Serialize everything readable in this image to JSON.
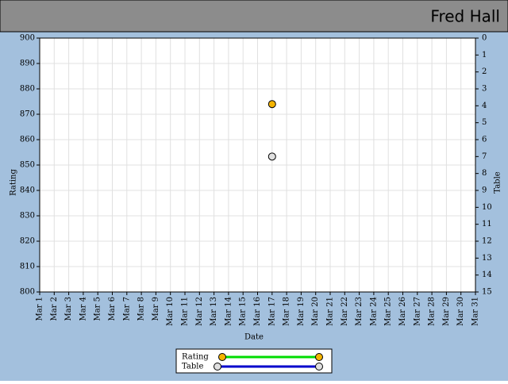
{
  "header": {
    "title": "Fred Hall"
  },
  "chart_data": {
    "type": "line",
    "x_label": "Date",
    "y_label": "Rating",
    "y2_label": "Table",
    "categories": [
      "Mar 1",
      "Mar 2",
      "Mar 3",
      "Mar 4",
      "Mar 5",
      "Mar 6",
      "Mar 7",
      "Mar 8",
      "Mar 9",
      "Mar 10",
      "Mar 11",
      "Mar 12",
      "Mar 13",
      "Mar 14",
      "Mar 15",
      "Mar 16",
      "Mar 17",
      "Mar 18",
      "Mar 19",
      "Mar 20",
      "Mar 21",
      "Mar 22",
      "Mar 23",
      "Mar 24",
      "Mar 25",
      "Mar 26",
      "Mar 27",
      "Mar 28",
      "Mar 29",
      "Mar 30",
      "Mar 31"
    ],
    "series": [
      {
        "name": "Rating",
        "color": "#00dd00",
        "marker_color": "#f5b400",
        "values": [
          null,
          null,
          null,
          null,
          null,
          null,
          null,
          null,
          null,
          null,
          null,
          null,
          null,
          null,
          null,
          null,
          874,
          null,
          null,
          null,
          null,
          null,
          null,
          null,
          null,
          null,
          null,
          null,
          null,
          null,
          null
        ]
      },
      {
        "name": "Table",
        "axis": "y2",
        "color": "#0000cc",
        "marker_color": "#e0e0e0",
        "values": [
          null,
          null,
          null,
          null,
          null,
          null,
          null,
          null,
          null,
          null,
          null,
          null,
          null,
          null,
          null,
          null,
          7,
          null,
          null,
          null,
          null,
          null,
          null,
          null,
          null,
          null,
          null,
          null,
          null,
          null,
          null
        ]
      }
    ],
    "ylim": [
      800,
      900
    ],
    "yticks": [
      800,
      810,
      820,
      830,
      840,
      850,
      860,
      870,
      880,
      890,
      900
    ],
    "y2lim": [
      15,
      0
    ],
    "y2ticks": [
      0,
      1,
      2,
      3,
      4,
      5,
      6,
      7,
      8,
      9,
      10,
      11,
      12,
      13,
      14,
      15
    ],
    "grid": true
  }
}
